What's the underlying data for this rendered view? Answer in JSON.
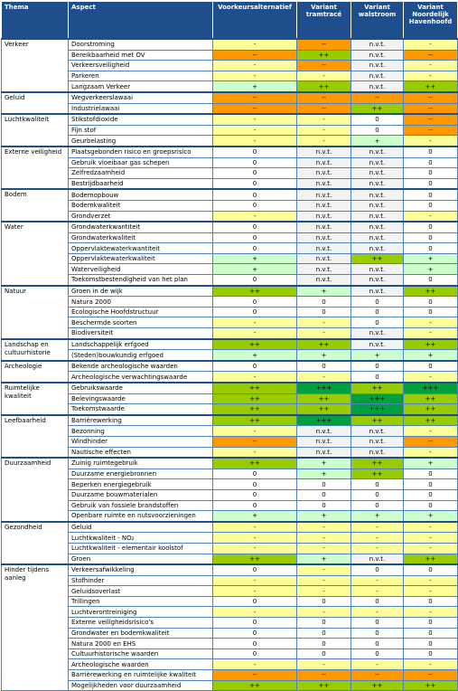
{
  "header": {
    "columns": [
      "Thema",
      "Aspect",
      "Voorkeursalternatief",
      "Variant tramtracé",
      "Variant walstroom",
      "Variant Noordelijk Havenhoofd"
    ]
  },
  "cell_colors": {
    "-": "#ffff99",
    "--": "#ff9900",
    "0": "#ffffff",
    "+": "#ccffcc",
    "++": "#99cc00",
    "+++": "#00a03c",
    "n.v.t.": "#f2f2f2"
  },
  "groups": [
    {
      "thema": "Verkeer",
      "rows": [
        {
          "aspect": "Doorstroming",
          "values": [
            "-",
            "--",
            "n.v.t.",
            "-"
          ]
        },
        {
          "aspect": "Bereikbaarheid met OV",
          "values": [
            "--",
            "++",
            "n.v.t.",
            "--"
          ]
        },
        {
          "aspect": "Verkeersveiligheid",
          "values": [
            "-",
            "--",
            "n.v.t.",
            "-"
          ]
        },
        {
          "aspect": "Parkeren",
          "values": [
            "-",
            "-",
            "n.v.t.",
            "-"
          ]
        },
        {
          "aspect": "Langzaam Verkeer",
          "values": [
            "+",
            "++",
            "n.v.t.",
            "++"
          ]
        }
      ]
    },
    {
      "thema": "Geluid",
      "rows": [
        {
          "aspect": "Wegverkeerslawaai",
          "values": [
            "--",
            "--",
            "--",
            "--"
          ]
        },
        {
          "aspect": "Industrielawaai",
          "values": [
            "--",
            "--",
            "++",
            "--"
          ]
        }
      ]
    },
    {
      "thema": "Luchtkwaliteit",
      "rows": [
        {
          "aspect": "Stikstofdioxide",
          "values": [
            "-",
            "-",
            "0",
            "--"
          ]
        },
        {
          "aspect": "Fijn stof",
          "values": [
            "-",
            "-",
            "0",
            "--"
          ]
        },
        {
          "aspect": "Geurbelasting",
          "values": [
            "-",
            "-",
            "+",
            "-"
          ]
        }
      ]
    },
    {
      "thema": "Externe veiligheid",
      "rows": [
        {
          "aspect": "Plaatsgebonden risico en groepsrisico",
          "values": [
            "0",
            "n.v.t.",
            "n.v.t.",
            "0"
          ]
        },
        {
          "aspect": "Gebruik vloeibaar gas schepen",
          "values": [
            "0",
            "n.v.t.",
            "n.v.t.",
            "0"
          ]
        },
        {
          "aspect": "Zelfredzaamheid",
          "values": [
            "0",
            "n.v.t.",
            "n.v.t.",
            "0"
          ]
        },
        {
          "aspect": "Bestrijdbaarheid",
          "values": [
            "0",
            "n.v.t.",
            "n.v.t.",
            "0"
          ]
        }
      ]
    },
    {
      "thema": "Bodem",
      "rows": [
        {
          "aspect": "Bodemopbouw",
          "values": [
            "0",
            "n.v.t.",
            "n.v.t.",
            "0"
          ]
        },
        {
          "aspect": "Bodemkwaliteit",
          "values": [
            "0",
            "n.v.t.",
            "n.v.t.",
            "0"
          ]
        },
        {
          "aspect": "Grondverzet",
          "values": [
            "-",
            "n.v.t.",
            "n.v.t.",
            "-"
          ]
        }
      ]
    },
    {
      "thema": "Water",
      "rows": [
        {
          "aspect": "Grondwaterkwantiteit",
          "values": [
            "0",
            "n.v.t.",
            "n.v.t.",
            "0"
          ]
        },
        {
          "aspect": "Grondwaterkwaliteit",
          "values": [
            "0",
            "n.v.t.",
            "n.v.t.",
            "0"
          ]
        },
        {
          "aspect": "Oppervlaktewaterkwantiteit",
          "values": [
            "0",
            "n.v.t.",
            "n.v.t.",
            "0"
          ]
        },
        {
          "aspect": "Oppervlaktewaterkwaliteit",
          "values": [
            "+",
            "n.v.t.",
            "++",
            "+"
          ]
        },
        {
          "aspect": "Waterveiligheid",
          "values": [
            "+",
            "n.v.t.",
            "n.v.t.",
            "+"
          ]
        },
        {
          "aspect": "Toekomstbestendigheid van het plan",
          "values": [
            "0",
            "n.v.t.",
            "n.v.t.",
            "0"
          ]
        }
      ]
    },
    {
      "thema": "Natuur",
      "rows": [
        {
          "aspect": "Groen in de wijk",
          "values": [
            "++",
            "+",
            "n.v.t.",
            "++"
          ]
        },
        {
          "aspect": "Natura 2000",
          "values": [
            "0",
            "0",
            "0",
            "0"
          ]
        },
        {
          "aspect": "Ecologische Hoofdstructuur",
          "values": [
            "0",
            "0",
            "0",
            "0"
          ]
        },
        {
          "aspect": "Beschermde soorten",
          "values": [
            "-",
            "-",
            "0",
            "-"
          ]
        },
        {
          "aspect": "Biodiversiteit",
          "values": [
            "-",
            "-",
            "n.v.t.",
            "-"
          ]
        }
      ]
    },
    {
      "thema": "Landschap en cultuurhistorie",
      "rows": [
        {
          "aspect": "Landschappelijk erfgoed",
          "values": [
            "++",
            "++",
            "n.v.t.",
            "++"
          ]
        },
        {
          "aspect": "(Steden)bouwkundig erfgoed",
          "values": [
            "+",
            "+",
            "+",
            "+"
          ]
        }
      ]
    },
    {
      "thema": "Archeologie",
      "rows": [
        {
          "aspect": "Bekende archeologische waarden",
          "values": [
            "0",
            "0",
            "0",
            "0"
          ]
        },
        {
          "aspect": "Archeologische verwachtingswaarde",
          "values": [
            "-",
            "-",
            "0",
            "-"
          ]
        }
      ]
    },
    {
      "thema": "Ruimtelijke kwaliteit",
      "rows": [
        {
          "aspect": "Gebruikswaarde",
          "values": [
            "++",
            "+++",
            "++",
            "+++"
          ]
        },
        {
          "aspect": "Belevingswaarde",
          "values": [
            "++",
            "++",
            "+++",
            "++"
          ]
        },
        {
          "aspect": "Toekomstwaarde",
          "values": [
            "++",
            "++",
            "+++",
            "++"
          ]
        }
      ]
    },
    {
      "thema": "Leefbaarheid",
      "rows": [
        {
          "aspect": "Barrièrewerking",
          "values": [
            "++",
            "+++",
            "++",
            "++"
          ]
        },
        {
          "aspect": "Bezonning",
          "values": [
            "-",
            "n.v.t.",
            "n.v.t.",
            "-"
          ]
        },
        {
          "aspect": "Windhinder",
          "values": [
            "--",
            "n.v.t.",
            "n.v.t.",
            "--"
          ]
        },
        {
          "aspect": "Nautische effecten",
          "values": [
            "-",
            "n.v.t.",
            "n.v.t.",
            "-"
          ]
        }
      ]
    },
    {
      "thema": "Duurzaamheid",
      "rows": [
        {
          "aspect": "Zuinig ruimtegebruik",
          "values": [
            "++",
            "+",
            "++",
            "+"
          ]
        },
        {
          "aspect": "Duurzame energiebronnen",
          "values": [
            "0",
            "+",
            "++",
            "0"
          ]
        },
        {
          "aspect": "Beperken energiegebruik",
          "values": [
            "0",
            "0",
            "0",
            "0"
          ]
        },
        {
          "aspect": "Duurzame bouwmaterialen",
          "values": [
            "0",
            "0",
            "0",
            "0"
          ]
        },
        {
          "aspect": "Gebruik van fossiele brandstoffen",
          "values": [
            "0",
            "0",
            "0",
            "0"
          ]
        },
        {
          "aspect": "Openbare ruimte en nutsvoorzieningen",
          "values": [
            "+",
            "+",
            "+",
            "+"
          ]
        }
      ]
    },
    {
      "thema": "Gezondheid",
      "rows": [
        {
          "aspect": "Geluid",
          "values": [
            "-",
            "-",
            "-",
            "-"
          ]
        },
        {
          "aspect": "Luchtkwaliteit - NO₂",
          "values": [
            "-",
            "-",
            "-",
            "-"
          ]
        },
        {
          "aspect": "Luchtkwaliteit - elementair koolstof",
          "values": [
            "-",
            "-",
            "-",
            "-"
          ]
        },
        {
          "aspect": "Groen",
          "values": [
            "++",
            "+",
            "n.v.t.",
            "++"
          ]
        }
      ]
    },
    {
      "thema": "Hinder tijdens aanleg",
      "rows": [
        {
          "aspect": "Verkeersafwikkeling",
          "values": [
            "0",
            "-",
            "0",
            "0"
          ]
        },
        {
          "aspect": "Stofhinder",
          "values": [
            "-",
            "-",
            "-",
            "-"
          ]
        },
        {
          "aspect": "Geluidsoverlast",
          "values": [
            "-",
            "-",
            "-",
            "-"
          ]
        },
        {
          "aspect": "Trillingen",
          "values": [
            "0",
            "0",
            "0",
            "0"
          ]
        },
        {
          "aspect": "Luchtverontreiniging",
          "values": [
            "-",
            "-",
            "-",
            "-"
          ]
        },
        {
          "aspect": "Externe veiligheidsrisico's",
          "values": [
            "0",
            "0",
            "0",
            "0"
          ]
        },
        {
          "aspect": "Grondwater en bodemkwaliteit",
          "values": [
            "0",
            "0",
            "0",
            "0"
          ]
        },
        {
          "aspect": "Natura 2000 en EHS",
          "values": [
            "0",
            "0",
            "0",
            "0"
          ]
        },
        {
          "aspect": "Cultuurhistorische waarden",
          "values": [
            "0",
            "0",
            "0",
            "0"
          ]
        },
        {
          "aspect": "Archeologische waarden",
          "values": [
            "-",
            "-",
            "-",
            "-"
          ]
        },
        {
          "aspect": "Barrièrewerking en ruimtelijke kwaliteit",
          "values": [
            "--",
            "--",
            "--",
            "--"
          ]
        },
        {
          "aspect": "Mogelijkheden voor duurzaamheid",
          "values": [
            "++",
            "++",
            "++",
            "++"
          ]
        }
      ]
    }
  ]
}
